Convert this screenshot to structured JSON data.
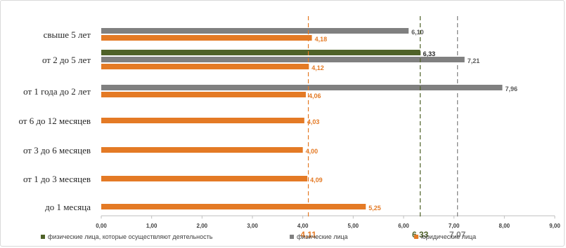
{
  "chart_data": {
    "type": "bar",
    "orientation": "horizontal",
    "categories": [
      "свыше 5 лет",
      "от 2 до 5 лет",
      "от 1 года до 2 лет",
      "от 6 до 12 месяцев",
      "от 3 до 6 месяцев",
      "от 1 до 3 месяцев",
      "до 1 месяца"
    ],
    "series": [
      {
        "name": "физические лица, которые осуществляют деятельность",
        "color": "#4f6228",
        "values": [
          null,
          6.33,
          null,
          null,
          null,
          null,
          null
        ],
        "labels": [
          "",
          "6,33",
          "",
          "",
          "",
          "",
          ""
        ]
      },
      {
        "name": "физические лица",
        "color": "#808080",
        "values": [
          6.1,
          7.21,
          7.96,
          null,
          null,
          null,
          null
        ],
        "labels": [
          "6,10",
          "7,21",
          "7,96",
          "",
          "",
          "",
          ""
        ]
      },
      {
        "name": "юридические лица",
        "color": "#e47a25",
        "values": [
          4.18,
          4.12,
          4.06,
          4.03,
          4.0,
          4.09,
          5.25
        ],
        "labels": [
          "4,18",
          "4,12",
          "4,06",
          "4,03",
          "4,00",
          "4,09",
          "5,25"
        ]
      }
    ],
    "reference_lines": [
      {
        "value": 4.11,
        "label": "4,11",
        "color": "#e47a25"
      },
      {
        "value": 6.33,
        "label": "6,33",
        "color": "#4f6228"
      },
      {
        "value": 7.07,
        "label": "7.07",
        "color": "#808080"
      }
    ],
    "xlim": [
      0,
      9
    ],
    "x_ticks": [
      0,
      1,
      2,
      3,
      4,
      5,
      6,
      7,
      8,
      9
    ],
    "x_tick_labels": [
      "0,00",
      "1,00",
      "2,00",
      "3,00",
      "4,00",
      "5,00",
      "6,00",
      "7,00",
      "8,00",
      "9,00"
    ],
    "grid": false,
    "legend_position": "bottom"
  }
}
